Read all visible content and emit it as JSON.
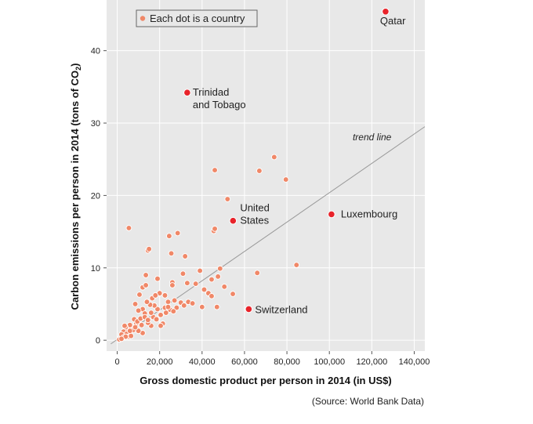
{
  "chart_data": {
    "type": "scatter",
    "title": "",
    "xlabel": "Gross domestic product per person in 2014 (in US$)",
    "ylabel_main": "Carbon emissions per person in 2014 (tons of CO",
    "ylabel_sub": "2",
    "ylabel_end": ")",
    "source": "(Source: World Bank Data)",
    "legend": "Each dot is a country",
    "trend_label": "trend line",
    "xlim": [
      -5000,
      145000
    ],
    "ylim": [
      -1.5,
      47
    ],
    "x_ticks": [
      0,
      20000,
      40000,
      60000,
      80000,
      100000,
      120000,
      140000
    ],
    "x_tick_labels": [
      "0",
      "20,000",
      "40,000",
      "60,000",
      "80,000",
      "100,000",
      "120,000",
      "140,000"
    ],
    "y_ticks": [
      0,
      10,
      20,
      30,
      40
    ],
    "y_tick_labels": [
      "0",
      "10",
      "20",
      "30",
      "40"
    ],
    "grid": true,
    "colors": {
      "background": "#e8e8e8",
      "dot": "#f08868",
      "highlight": "#e8232a",
      "trend": "#999999"
    },
    "trend_line": {
      "x": [
        -3000,
        145000
      ],
      "y": [
        -0.5,
        29.5
      ]
    },
    "highlighted": [
      {
        "name": "Qatar",
        "x": 126500,
        "y": 45.4,
        "label_lines": [
          "Qatar"
        ]
      },
      {
        "name": "Trinidad and Tobago",
        "x": 33000,
        "y": 34.2,
        "label_lines": [
          "Trinidad",
          "and Tobago"
        ]
      },
      {
        "name": "United States",
        "x": 54600,
        "y": 16.5,
        "label_lines": [
          "United",
          "States"
        ]
      },
      {
        "name": "Luxembourg",
        "x": 101000,
        "y": 17.4,
        "label_lines": [
          "Luxembourg"
        ]
      },
      {
        "name": "Switzerland",
        "x": 62000,
        "y": 4.3,
        "label_lines": [
          "Switzerland"
        ]
      }
    ],
    "points": [
      [
        5500,
        15.5
      ],
      [
        14500,
        12.4
      ],
      [
        15000,
        12.6
      ],
      [
        13500,
        9.0
      ],
      [
        12000,
        7.3
      ],
      [
        10500,
        6.3
      ],
      [
        13500,
        7.6
      ],
      [
        19000,
        8.5
      ],
      [
        24500,
        14.4
      ],
      [
        28500,
        14.8
      ],
      [
        25500,
        12.0
      ],
      [
        32000,
        11.6
      ],
      [
        46000,
        23.5
      ],
      [
        52000,
        19.5
      ],
      [
        45500,
        15.1
      ],
      [
        46000,
        15.4
      ],
      [
        67000,
        23.4
      ],
      [
        74000,
        25.3
      ],
      [
        79500,
        22.2
      ],
      [
        84500,
        10.4
      ],
      [
        66000,
        9.3
      ],
      [
        26000,
        8.0
      ],
      [
        26000,
        7.6
      ],
      [
        31000,
        9.2
      ],
      [
        33000,
        7.9
      ],
      [
        37000,
        7.8
      ],
      [
        39000,
        9.6
      ],
      [
        44500,
        8.4
      ],
      [
        48500,
        9.9
      ],
      [
        41000,
        7.0
      ],
      [
        43000,
        6.5
      ],
      [
        47500,
        8.8
      ],
      [
        50500,
        7.4
      ],
      [
        54500,
        6.4
      ],
      [
        44500,
        6.1
      ],
      [
        47000,
        4.6
      ],
      [
        40000,
        4.6
      ],
      [
        20000,
        6.5
      ],
      [
        22500,
        6.2
      ],
      [
        24000,
        5.3
      ],
      [
        27000,
        5.5
      ],
      [
        30000,
        5.2
      ],
      [
        31500,
        4.8
      ],
      [
        33500,
        5.3
      ],
      [
        35500,
        5.1
      ],
      [
        28000,
        4.5
      ],
      [
        25000,
        4.2
      ],
      [
        22500,
        4.5
      ],
      [
        19000,
        4.3
      ],
      [
        17500,
        4.8
      ],
      [
        15500,
        4.9
      ],
      [
        14000,
        5.3
      ],
      [
        12000,
        4.3
      ],
      [
        8500,
        5.0
      ],
      [
        10000,
        4.1
      ],
      [
        16500,
        5.8
      ],
      [
        18000,
        6.2
      ],
      [
        17000,
        3.2
      ],
      [
        18500,
        2.9
      ],
      [
        20500,
        3.5
      ],
      [
        21500,
        2.3
      ],
      [
        20500,
        2.0
      ],
      [
        23000,
        3.8
      ],
      [
        24000,
        4.6
      ],
      [
        26500,
        4.0
      ],
      [
        16000,
        2.0
      ],
      [
        14500,
        2.4
      ],
      [
        13000,
        3.7
      ],
      [
        11500,
        2.1
      ],
      [
        12000,
        1.0
      ],
      [
        10000,
        1.3
      ],
      [
        9000,
        2.3
      ],
      [
        8000,
        2.9
      ],
      [
        7000,
        1.7
      ],
      [
        6000,
        2.1
      ],
      [
        5000,
        1.3
      ],
      [
        4000,
        1.8
      ],
      [
        3500,
        2.0
      ],
      [
        3000,
        1.2
      ],
      [
        2500,
        0.6
      ],
      [
        1500,
        0.3
      ],
      [
        2000,
        0.8
      ],
      [
        3000,
        0.4
      ],
      [
        4500,
        0.9
      ],
      [
        5500,
        0.5
      ],
      [
        6500,
        0.6
      ],
      [
        7500,
        1.4
      ],
      [
        8500,
        1.8
      ],
      [
        9500,
        2.6
      ],
      [
        11000,
        3.0
      ],
      [
        13000,
        3.2
      ],
      [
        14500,
        2.8
      ],
      [
        16000,
        3.8
      ],
      [
        6000,
        1.3
      ],
      [
        4000,
        0.5
      ],
      [
        1000,
        0.1
      ],
      [
        2000,
        0.2
      ]
    ]
  }
}
